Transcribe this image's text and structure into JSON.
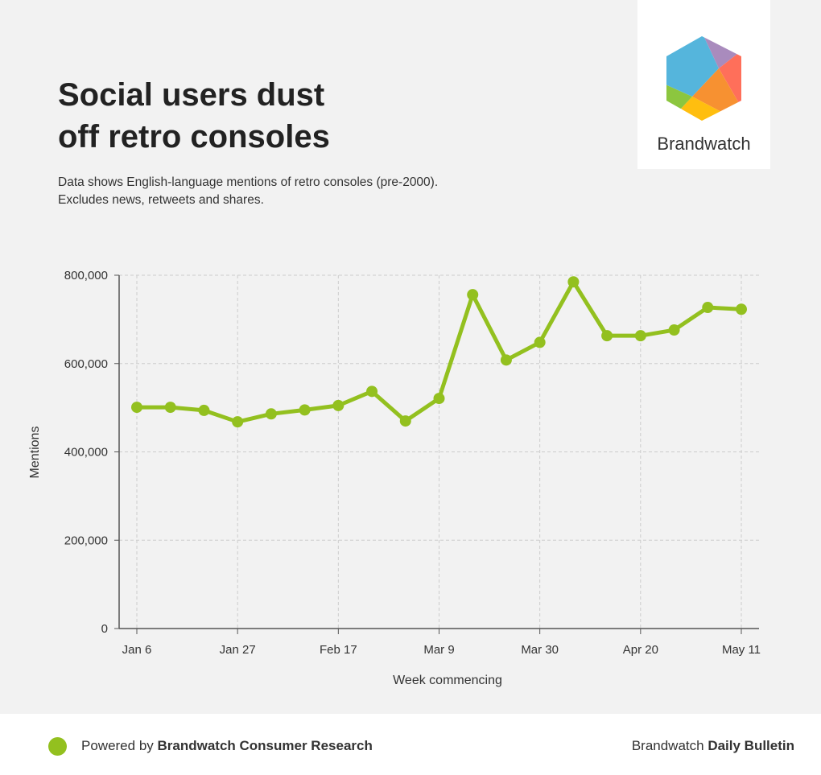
{
  "title_line1": "Social users dust",
  "title_line2": "off retro consoles",
  "subtitle_line1": "Data shows English-language mentions of retro consoles (pre-2000).",
  "subtitle_line2": "Excludes news, retweets and shares.",
  "logo": {
    "text": "Brandwatch"
  },
  "footer": {
    "powered_prefix": "Powered by ",
    "powered_brand": "Brandwatch Consumer Research",
    "bulletin_prefix": "Brandwatch ",
    "bulletin_bold": "Daily Bulletin"
  },
  "colors": {
    "line": "#93c01f",
    "grid": "#cccccc",
    "axis": "#555555"
  },
  "chart_data": {
    "type": "line",
    "xlabel": "Week commencing",
    "ylabel": "Mentions",
    "ylim": [
      0,
      800000
    ],
    "yticks": [
      0,
      200000,
      400000,
      600000,
      800000
    ],
    "ytick_labels": [
      "0",
      "200,000",
      "400,000",
      "600,000",
      "800,000"
    ],
    "x": [
      "Jan 6",
      "Jan 13",
      "Jan 20",
      "Jan 27",
      "Feb 3",
      "Feb 10",
      "Feb 17",
      "Feb 24",
      "Mar 2",
      "Mar 9",
      "Mar 16",
      "Mar 23",
      "Mar 30",
      "Apr 6",
      "Apr 13",
      "Apr 20",
      "Apr 27",
      "May 4",
      "May 11"
    ],
    "xtick_labels": [
      "Jan 6",
      "Jan 27",
      "Feb 17",
      "Mar 9",
      "Mar 30",
      "Apr 20",
      "May 11"
    ],
    "xtick_indices": [
      0,
      3,
      6,
      9,
      12,
      15,
      18
    ],
    "grid": true,
    "series": [
      {
        "name": "Mentions",
        "values": [
          501000,
          501000,
          494000,
          468000,
          486000,
          495000,
          505000,
          537000,
          470000,
          521000,
          756000,
          608000,
          648000,
          785000,
          663000,
          663000,
          676000,
          727000,
          723000
        ]
      }
    ]
  }
}
